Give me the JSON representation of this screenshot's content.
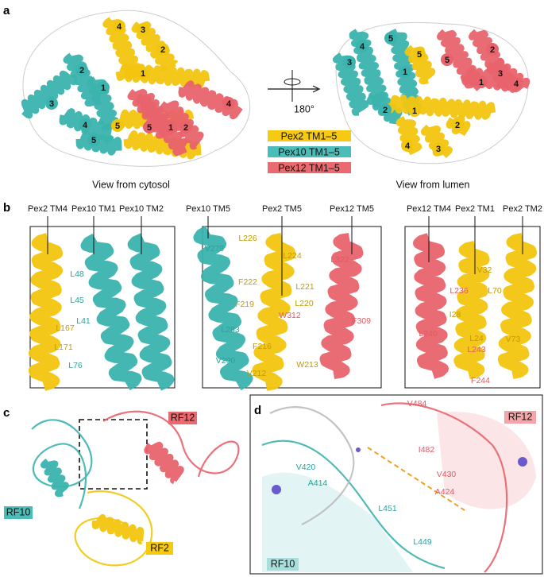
{
  "panel_a": {
    "label": "a",
    "helix_numbers": [
      "1",
      "2",
      "3",
      "4",
      "5"
    ],
    "rotation": "180°",
    "legend": [
      "Pex2 TM1–5",
      "Pex10 TM1–5",
      "Pex12 TM1–5"
    ],
    "cytosol_view": "View from cytosol",
    "lumen_view": "View from lumen"
  },
  "panel_b": {
    "label": "b",
    "boxes": [
      {
        "helices": [
          "Pex2 TM4",
          "Pex10 TM1",
          "Pex10 TM2"
        ],
        "residues": [
          "L48",
          "L45",
          "L41",
          "L167",
          "L171",
          "L76"
        ]
      },
      {
        "helices": [
          "Pex10 TM5",
          "Pex2 TM5",
          "Pex12 TM5"
        ],
        "residues": [
          "L226",
          "V279",
          "L224",
          "L322",
          "F222",
          "L221",
          "F219",
          "L220",
          "W312",
          "F309",
          "L283",
          "F216",
          "V290",
          "V212",
          "W213"
        ]
      },
      {
        "helices": [
          "Pex12 TM4",
          "Pex2 TM1",
          "Pex2 TM2"
        ],
        "residues": [
          "L236",
          "V32",
          "L70",
          "I28",
          "L240",
          "L24",
          "V73",
          "L243",
          "F244"
        ]
      }
    ]
  },
  "panel_c": {
    "label": "c",
    "chains": [
      "RF12",
      "RF10",
      "RF2"
    ]
  },
  "panel_d": {
    "label": "d",
    "chains": [
      "RF12",
      "RF10"
    ],
    "residues": [
      "V484",
      "I482",
      "V420",
      "V430",
      "A414",
      "A424",
      "L451",
      "L449"
    ]
  }
}
